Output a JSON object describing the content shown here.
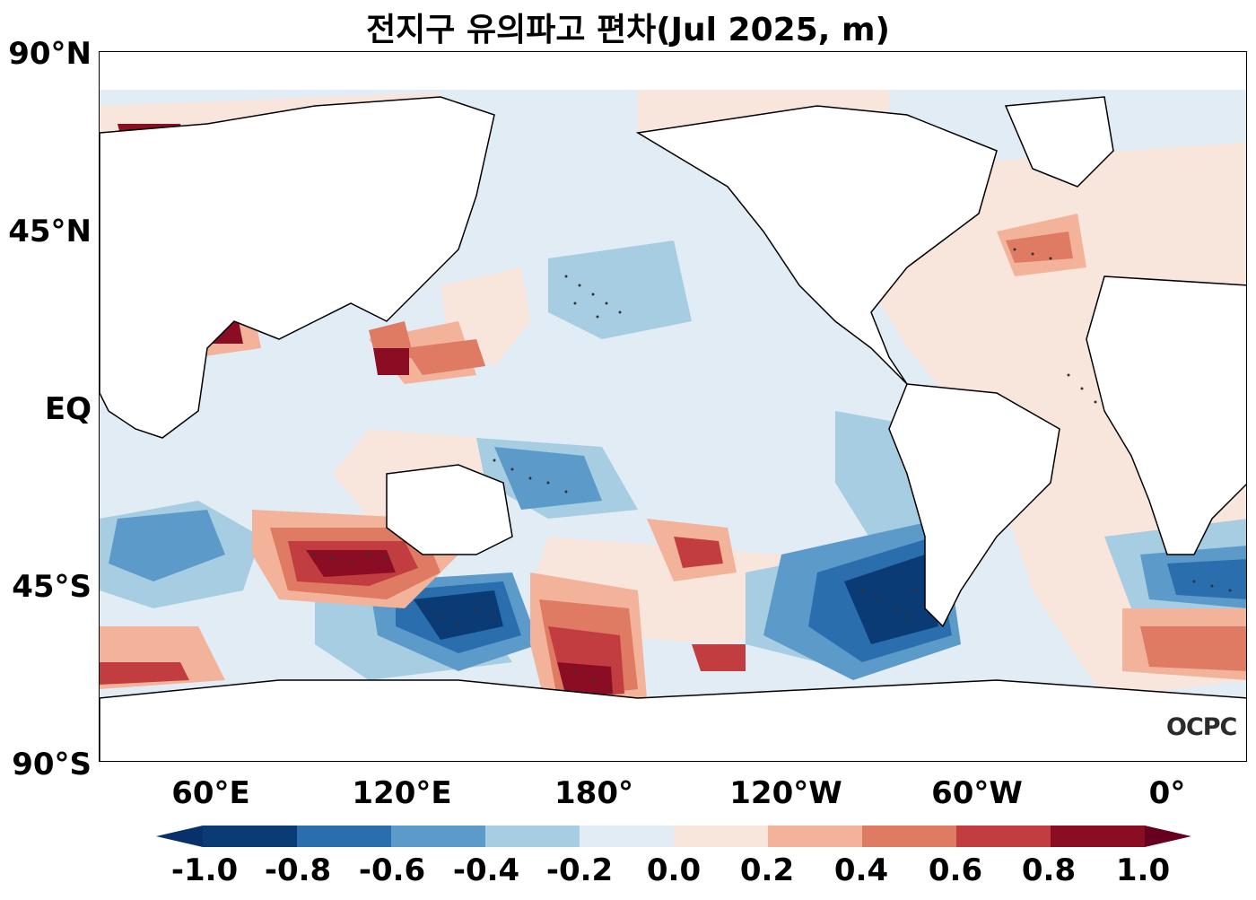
{
  "title": "전지구 유의파고 편차(Jul 2025, m)",
  "logo_text": "OCPC",
  "lat_labels": [
    "90°N",
    "45°N",
    "EQ",
    "45°S",
    "90°S"
  ],
  "lon_labels": [
    "60°E",
    "120°E",
    "180°",
    "120°W",
    "60°W",
    "0°"
  ],
  "colorbar": {
    "ticks": [
      "-1.0",
      "-0.8",
      "-0.6",
      "-0.4",
      "-0.2",
      "0.0",
      "0.2",
      "0.4",
      "0.6",
      "0.8",
      "1.0"
    ],
    "colors": [
      "#0b3b75",
      "#2a6ead",
      "#5c9bc9",
      "#a7cde3",
      "#e1ecf5",
      "#f8e5dc",
      "#f2b39a",
      "#df7a63",
      "#c23d3f",
      "#8a0d24"
    ],
    "under_color": "#08306b",
    "over_color": "#67001f",
    "extend": "both"
  },
  "colors": {
    "land": "#ffffff",
    "coast": "#000000",
    "ocean_neutral": "#e1ecf5"
  }
}
